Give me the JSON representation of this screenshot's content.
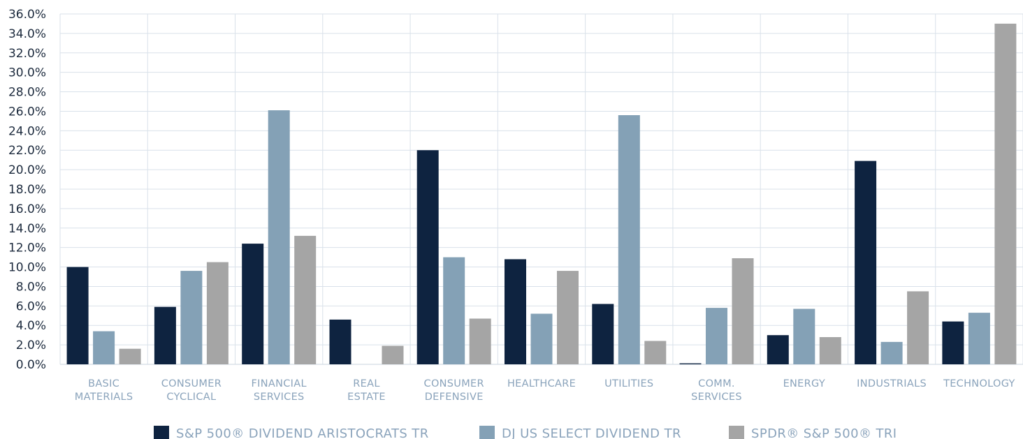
{
  "chart_data": {
    "type": "bar",
    "categories": [
      [
        "BASIC",
        "MATERIALS"
      ],
      [
        "CONSUMER",
        "CYCLICAL"
      ],
      [
        "FINANCIAL",
        "SERVICES"
      ],
      [
        "REAL",
        "ESTATE"
      ],
      [
        "CONSUMER",
        "DEFENSIVE"
      ],
      [
        "HEALTHCARE"
      ],
      [
        "UTILITIES"
      ],
      [
        "COMM.",
        "SERVICES"
      ],
      [
        "ENERGY"
      ],
      [
        "INDUSTRIALS"
      ],
      [
        "TECHNOLOGY"
      ]
    ],
    "series": [
      {
        "name": "S&P 500® DIVIDEND ARISTOCRATS TR",
        "color": "#0e2340",
        "values": [
          10.0,
          5.9,
          12.4,
          4.6,
          22.0,
          10.8,
          6.2,
          0.1,
          3.0,
          20.9,
          4.4
        ]
      },
      {
        "name": "DJ US SELECT DIVIDEND TR",
        "color": "#84a1b6",
        "values": [
          3.4,
          9.6,
          26.1,
          0.0,
          11.0,
          5.2,
          25.6,
          5.8,
          5.7,
          2.3,
          5.3
        ]
      },
      {
        "name": "SPDR® S&P 500® TRI",
        "color": "#a5a5a5",
        "values": [
          1.6,
          10.5,
          13.2,
          1.9,
          4.7,
          9.6,
          2.4,
          10.9,
          2.8,
          7.5,
          35.0
        ]
      }
    ],
    "yticks": [
      "0.0%",
      "2.0%",
      "4.0%",
      "6.0%",
      "8.0%",
      "10.0%",
      "12.0%",
      "14.0%",
      "16.0%",
      "18.0%",
      "20.0%",
      "22.0%",
      "24.0%",
      "26.0%",
      "28.0%",
      "30.0%",
      "32.0%",
      "34.0%",
      "36.0%"
    ],
    "ylim": [
      0,
      36
    ],
    "grid": true,
    "legend_position": "bottom-center"
  }
}
